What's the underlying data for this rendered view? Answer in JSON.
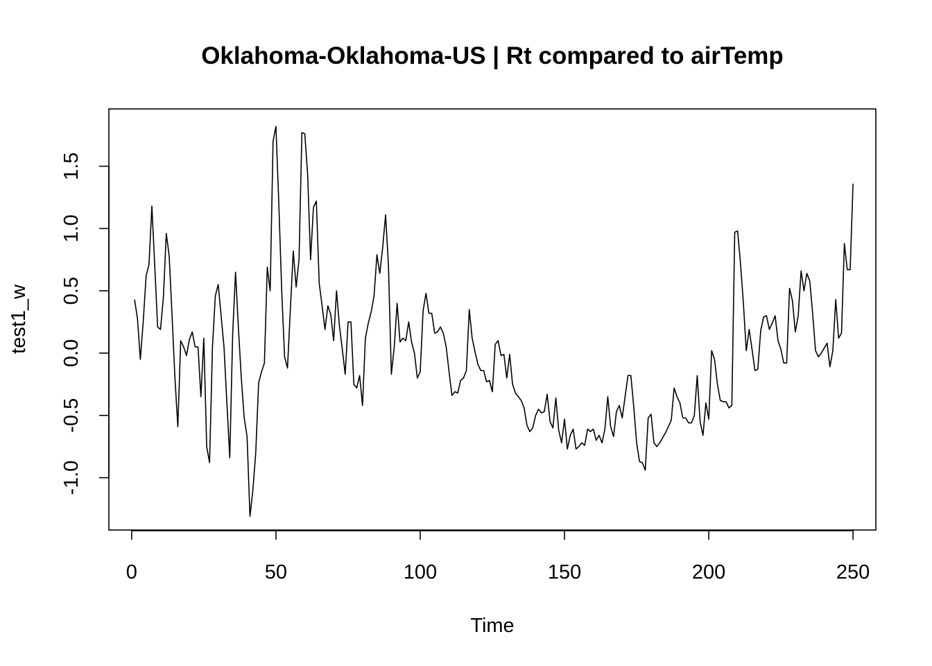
{
  "chart_data": {
    "type": "line",
    "title": "Oklahoma-Oklahoma-US | Rt compared to airTemp",
    "xlabel": "Time",
    "ylabel": "test1_w",
    "xlim": [
      -7.9,
      257.9
    ],
    "ylim": [
      -1.42,
      1.96
    ],
    "grid": false,
    "legend": "none",
    "line_color": "#000000",
    "x_ticks": [
      0,
      50,
      100,
      150,
      200,
      250
    ],
    "x_tick_labels": [
      "0",
      "50",
      "100",
      "150",
      "200",
      "250"
    ],
    "y_ticks": [
      -1.0,
      -0.5,
      0.0,
      0.5,
      1.0,
      1.5
    ],
    "y_tick_labels": [
      "-1.0",
      "-0.5",
      "0.0",
      "0.5",
      "1.0",
      "1.5"
    ],
    "series": [
      {
        "x_start": 1,
        "values": [
          0.43,
          0.28,
          -0.05,
          0.25,
          0.62,
          0.71,
          1.18,
          0.7,
          0.21,
          0.19,
          0.45,
          0.96,
          0.78,
          0.3,
          -0.2,
          -0.59,
          0.1,
          0.05,
          -0.02,
          0.11,
          0.17,
          0.05,
          0.05,
          -0.35,
          0.12,
          -0.75,
          -0.88,
          0.05,
          0.46,
          0.55,
          0.3,
          0.05,
          -0.4,
          -0.84,
          0.15,
          0.65,
          0.2,
          -0.2,
          -0.52,
          -0.67,
          -1.31,
          -1.1,
          -0.8,
          -0.24,
          -0.15,
          -0.08,
          0.69,
          0.5,
          1.7,
          1.82,
          1.2,
          0.5,
          -0.03,
          -0.12,
          0.35,
          0.82,
          0.53,
          0.75,
          1.77,
          1.76,
          1.43,
          0.75,
          1.17,
          1.22,
          0.56,
          0.38,
          0.19,
          0.38,
          0.31,
          0.1,
          0.5,
          0.22,
          0.03,
          -0.17,
          0.25,
          0.25,
          -0.25,
          -0.28,
          -0.18,
          -0.42,
          0.12,
          0.24,
          0.33,
          0.46,
          0.79,
          0.64,
          0.85,
          1.11,
          0.7,
          -0.17,
          0.05,
          0.4,
          0.09,
          0.12,
          0.1,
          0.25,
          0.09,
          0.0,
          -0.2,
          -0.15,
          0.34,
          0.48,
          0.32,
          0.32,
          0.16,
          0.17,
          0.21,
          0.16,
          0.05,
          -0.15,
          -0.34,
          -0.31,
          -0.32,
          -0.22,
          -0.2,
          -0.14,
          0.35,
          0.12,
          0.01,
          -0.09,
          -0.14,
          -0.14,
          -0.23,
          -0.22,
          -0.31,
          0.07,
          0.1,
          -0.02,
          -0.01,
          -0.2,
          -0.01,
          -0.25,
          -0.32,
          -0.35,
          -0.38,
          -0.44,
          -0.58,
          -0.63,
          -0.6,
          -0.5,
          -0.45,
          -0.48,
          -0.47,
          -0.33,
          -0.55,
          -0.6,
          -0.36,
          -0.62,
          -0.72,
          -0.53,
          -0.77,
          -0.66,
          -0.61,
          -0.77,
          -0.75,
          -0.72,
          -0.74,
          -0.61,
          -0.63,
          -0.61,
          -0.7,
          -0.66,
          -0.72,
          -0.61,
          -0.35,
          -0.59,
          -0.67,
          -0.47,
          -0.42,
          -0.52,
          -0.35,
          -0.18,
          -0.18,
          -0.43,
          -0.72,
          -0.87,
          -0.88,
          -0.94,
          -0.52,
          -0.49,
          -0.72,
          -0.75,
          -0.72,
          -0.68,
          -0.64,
          -0.59,
          -0.54,
          -0.28,
          -0.35,
          -0.4,
          -0.52,
          -0.52,
          -0.56,
          -0.56,
          -0.5,
          -0.18,
          -0.55,
          -0.66,
          -0.4,
          -0.53,
          0.02,
          -0.05,
          -0.25,
          -0.38,
          -0.39,
          -0.39,
          -0.44,
          -0.42,
          0.97,
          0.98,
          0.72,
          0.4,
          0.02,
          0.19,
          0.03,
          -0.14,
          -0.13,
          0.18,
          0.29,
          0.3,
          0.19,
          0.24,
          0.3,
          0.1,
          0.03,
          -0.08,
          -0.08,
          0.52,
          0.42,
          0.17,
          0.3,
          0.66,
          0.5,
          0.64,
          0.58,
          0.32,
          0.02,
          -0.03,
          0.0,
          0.04,
          0.08,
          -0.11,
          0.02,
          0.43,
          0.12,
          0.16,
          0.88,
          0.67,
          0.67,
          1.36
        ]
      }
    ]
  }
}
